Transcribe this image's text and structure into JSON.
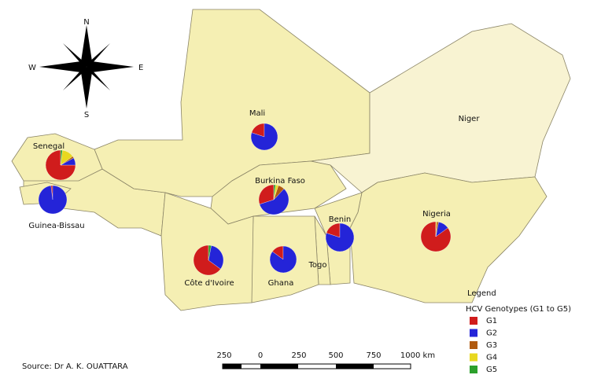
{
  "compass": {
    "n": "N",
    "s": "S",
    "e": "E",
    "w": "W"
  },
  "countries": [
    {
      "name": "Mali",
      "genotypes": [
        20,
        80,
        0,
        0,
        0
      ]
    },
    {
      "name": "Niger"
    },
    {
      "name": "Senegal",
      "genotypes": [
        75,
        8,
        2,
        13,
        2
      ]
    },
    {
      "name": "Guinea-Bissau",
      "genotypes": [
        2,
        98,
        0,
        0,
        0
      ]
    },
    {
      "name": "Burkina Faso",
      "genotypes": [
        30,
        58,
        7,
        3,
        2
      ]
    },
    {
      "name": "Benin",
      "genotypes": [
        20,
        80,
        0,
        0,
        0
      ]
    },
    {
      "name": "Nigeria",
      "genotypes": [
        85,
        12,
        2,
        1,
        0
      ]
    },
    {
      "name": "Côte d'Ivoire",
      "genotypes": [
        65,
        32,
        0,
        0,
        3
      ]
    },
    {
      "name": "Ghana",
      "genotypes": [
        15,
        85,
        0,
        0,
        0
      ]
    },
    {
      "name": "Togo"
    }
  ],
  "legend": {
    "title": "Legend",
    "subtitle": "HCV Genotypes (G1 to G5)",
    "items": [
      {
        "name": "G1",
        "color": "#d01c1c"
      },
      {
        "name": "G2",
        "color": "#2424d8"
      },
      {
        "name": "G3",
        "color": "#b05a10"
      },
      {
        "name": "G4",
        "color": "#e8d820"
      },
      {
        "name": "G5",
        "color": "#2ca02c"
      }
    ]
  },
  "scale": {
    "ticks": [
      "250",
      "0",
      "250",
      "500",
      "750",
      "1000 km"
    ]
  },
  "source": "Source: Dr A. K. OUATTARA"
}
